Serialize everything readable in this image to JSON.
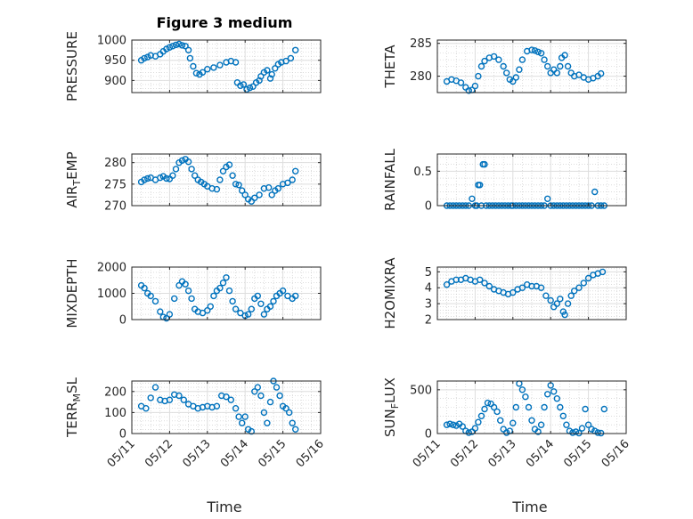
{
  "figure": {
    "title": "Figure 3 medium",
    "marker_color": "#0072BD"
  },
  "chart_data": [
    {
      "type": "scatter",
      "ylabel": "PRESSURE",
      "ylim": [
        870,
        1000
      ],
      "yticks": [
        900,
        950,
        1000
      ],
      "xlim": [
        "05/11",
        "05/16"
      ],
      "xticks": [
        "05/11",
        "05/12",
        "05/13",
        "05/14",
        "05/15",
        "05/16"
      ],
      "grid": true,
      "x": [
        "05/11 06:00",
        "05/11 08:00",
        "05/11 10:00",
        "05/11 12:00",
        "05/11 15:00",
        "05/11 18:00",
        "05/11 20:00",
        "05/11 22:00",
        "05/12 00:00",
        "05/12 02:00",
        "05/12 04:00",
        "05/12 06:00",
        "05/12 08:00",
        "05/12 10:00",
        "05/12 12:00",
        "05/12 13:00",
        "05/12 15:00",
        "05/12 17:00",
        "05/12 19:00",
        "05/12 21:00",
        "05/13 00:00",
        "05/13 04:00",
        "05/13 08:00",
        "05/13 12:00",
        "05/13 15:00",
        "05/13 18:00",
        "05/13 19:00",
        "05/13 21:00",
        "05/13 23:00",
        "05/14 01:00",
        "05/14 03:00",
        "05/14 05:00",
        "05/14 07:00",
        "05/14 09:00",
        "05/14 10:00",
        "05/14 12:00",
        "05/14 14:00",
        "05/14 16:00",
        "05/14 17:00",
        "05/14 19:00",
        "05/14 21:00",
        "05/14 23:00",
        "05/15 02:00",
        "05/15 05:00",
        "05/15 08:00"
      ],
      "y": [
        950,
        955,
        958,
        962,
        960,
        965,
        972,
        978,
        982,
        985,
        988,
        990,
        987,
        985,
        975,
        955,
        935,
        918,
        915,
        920,
        928,
        932,
        938,
        945,
        948,
        945,
        895,
        887,
        890,
        878,
        882,
        885,
        895,
        900,
        910,
        920,
        925,
        905,
        915,
        930,
        940,
        945,
        948,
        955,
        975
      ]
    },
    {
      "type": "scatter",
      "ylabel": "THETA",
      "ylim": [
        277.5,
        285.5
      ],
      "yticks": [
        280,
        285
      ],
      "xlim": [
        "05/11",
        "05/16"
      ],
      "xticks": [
        "05/11",
        "05/12",
        "05/13",
        "05/14",
        "05/15",
        "05/16"
      ],
      "grid": true,
      "x": [
        "05/11 06:00",
        "05/11 09:00",
        "05/11 12:00",
        "05/11 15:00",
        "05/11 18:00",
        "05/11 20:00",
        "05/11 22:00",
        "05/12 00:00",
        "05/12 02:00",
        "05/12 04:00",
        "05/12 06:00",
        "05/12 09:00",
        "05/12 12:00",
        "05/12 15:00",
        "05/12 18:00",
        "05/12 20:00",
        "05/12 22:00",
        "05/13 00:00",
        "05/13 02:00",
        "05/13 04:00",
        "05/13 06:00",
        "05/13 09:00",
        "05/13 12:00",
        "05/13 14:00",
        "05/13 16:00",
        "05/13 18:00",
        "05/13 20:00",
        "05/13 22:00",
        "05/14 00:00",
        "05/14 02:00",
        "05/14 04:00",
        "05/14 06:00",
        "05/14 07:00",
        "05/14 09:00",
        "05/14 11:00",
        "05/14 13:00",
        "05/14 15:00",
        "05/14 18:00",
        "05/14 21:00",
        "05/15 00:00",
        "05/15 03:00",
        "05/15 06:00",
        "05/15 08:00"
      ],
      "y": [
        279.2,
        279.5,
        279.3,
        279,
        278.3,
        277.8,
        277.9,
        278.5,
        280,
        281.5,
        282.3,
        282.8,
        283,
        282.5,
        281.5,
        280.5,
        279.5,
        279.2,
        279.8,
        281,
        282.5,
        283.8,
        284,
        283.9,
        283.7,
        283.5,
        282.5,
        281.5,
        280.5,
        281,
        280.5,
        281.5,
        282.8,
        283.2,
        281.5,
        280.5,
        280,
        280.2,
        279.8,
        279.5,
        279.7,
        280,
        280.4
      ]
    },
    {
      "type": "scatter",
      "ylabel": "AIR_TEMP",
      "ylim": [
        270,
        282
      ],
      "yticks": [
        270,
        275,
        280
      ],
      "xlim": [
        "05/11",
        "05/16"
      ],
      "xticks": [
        "05/11",
        "05/12",
        "05/13",
        "05/14",
        "05/15",
        "05/16"
      ],
      "grid": true,
      "x": [
        "05/11 06:00",
        "05/11 08:00",
        "05/11 10:00",
        "05/11 12:00",
        "05/11 15:00",
        "05/11 18:00",
        "05/11 20:00",
        "05/11 22:00",
        "05/12 00:00",
        "05/12 02:00",
        "05/12 04:00",
        "05/12 06:00",
        "05/12 08:00",
        "05/12 10:00",
        "05/12 12:00",
        "05/12 14:00",
        "05/12 16:00",
        "05/12 18:00",
        "05/12 20:00",
        "05/12 22:00",
        "05/13 00:00",
        "05/13 03:00",
        "05/13 06:00",
        "05/13 08:00",
        "05/13 10:00",
        "05/13 12:00",
        "05/13 14:00",
        "05/13 16:00",
        "05/13 18:00",
        "05/13 20:00",
        "05/13 22:00",
        "05/14 00:00",
        "05/14 02:00",
        "05/14 04:00",
        "05/14 06:00",
        "05/14 09:00",
        "05/14 12:00",
        "05/14 15:00",
        "05/14 17:00",
        "05/14 19:00",
        "05/14 21:00",
        "05/15 00:00",
        "05/15 03:00",
        "05/15 06:00",
        "05/15 08:00"
      ],
      "y": [
        275.5,
        276,
        276.3,
        276.5,
        276,
        276.5,
        276.8,
        276.3,
        276.2,
        277,
        278.5,
        280,
        280.5,
        280.8,
        280.2,
        278.5,
        277,
        276,
        275.5,
        275,
        274.5,
        274,
        273.8,
        276,
        278,
        279,
        279.5,
        277,
        275,
        274.8,
        273.5,
        272.5,
        271.5,
        271,
        271.8,
        272.5,
        274,
        274.2,
        272.5,
        273.5,
        274,
        275,
        275.3,
        276,
        278
      ]
    },
    {
      "type": "scatter",
      "ylabel": "RAINFALL",
      "ylim": [
        0,
        0.75
      ],
      "yticks": [
        0,
        0.5
      ],
      "xlim": [
        "05/11",
        "05/16"
      ],
      "xticks": [
        "05/11",
        "05/12",
        "05/13",
        "05/14",
        "05/15",
        "05/16"
      ],
      "grid": true,
      "x": [
        "05/11 06:00",
        "05/11 08:00",
        "05/11 10:00",
        "05/11 12:00",
        "05/11 14:00",
        "05/11 16:00",
        "05/11 18:00",
        "05/11 20:00",
        "05/11 22:00",
        "05/12 00:00",
        "05/12 01:00",
        "05/12 02:00",
        "05/12 03:00",
        "05/12 04:00",
        "05/12 05:00",
        "05/12 06:00",
        "05/12 07:00",
        "05/12 09:00",
        "05/12 11:00",
        "05/12 13:00",
        "05/12 15:00",
        "05/12 17:00",
        "05/12 19:00",
        "05/12 21:00",
        "05/12 23:00",
        "05/13 00:00",
        "05/13 02:00",
        "05/13 04:00",
        "05/13 06:00",
        "05/13 08:00",
        "05/13 10:00",
        "05/13 12:00",
        "05/13 14:00",
        "05/13 16:00",
        "05/13 18:00",
        "05/13 20:00",
        "05/13 22:00",
        "05/14 00:00",
        "05/14 02:00",
        "05/14 04:00",
        "05/14 06:00",
        "05/14 08:00",
        "05/14 10:00",
        "05/14 12:00",
        "05/14 14:00",
        "05/14 16:00",
        "05/14 18:00",
        "05/14 20:00",
        "05/14 22:00",
        "05/15 00:00",
        "05/15 02:00",
        "05/15 04:00",
        "05/15 06:00",
        "05/15 08:00",
        "05/15 10:00"
      ],
      "y": [
        0,
        0,
        0,
        0,
        0,
        0,
        0,
        0,
        0.1,
        0,
        0,
        0.3,
        0.3,
        0,
        0.6,
        0.6,
        0,
        0,
        0,
        0,
        0,
        0,
        0,
        0,
        0,
        0,
        0,
        0,
        0,
        0,
        0,
        0,
        0,
        0,
        0,
        0,
        0.1,
        0,
        0,
        0,
        0,
        0,
        0,
        0,
        0,
        0,
        0,
        0,
        0,
        0,
        0,
        0.2,
        0,
        0,
        0
      ]
    },
    {
      "type": "scatter",
      "ylabel": "MIXDEPTH",
      "ylim": [
        0,
        2000
      ],
      "yticks": [
        0,
        1000,
        2000
      ],
      "xlim": [
        "05/11",
        "05/16"
      ],
      "xticks": [
        "05/11",
        "05/12",
        "05/13",
        "05/14",
        "05/15",
        "05/16"
      ],
      "grid": true,
      "x": [
        "05/11 06:00",
        "05/11 08:00",
        "05/11 10:00",
        "05/11 12:00",
        "05/11 15:00",
        "05/11 18:00",
        "05/11 20:00",
        "05/11 22:00",
        "05/12 00:00",
        "05/12 03:00",
        "05/12 06:00",
        "05/12 08:00",
        "05/12 10:00",
        "05/12 12:00",
        "05/12 14:00",
        "05/12 16:00",
        "05/12 18:00",
        "05/12 21:00",
        "05/13 00:00",
        "05/13 02:00",
        "05/13 04:00",
        "05/13 06:00",
        "05/13 08:00",
        "05/13 10:00",
        "05/13 12:00",
        "05/13 14:00",
        "05/13 16:00",
        "05/13 18:00",
        "05/13 21:00",
        "05/14 00:00",
        "05/14 02:00",
        "05/14 04:00",
        "05/14 06:00",
        "05/14 08:00",
        "05/14 10:00",
        "05/14 12:00",
        "05/14 14:00",
        "05/14 16:00",
        "05/14 18:00",
        "05/14 20:00",
        "05/14 22:00",
        "05/15 00:00",
        "05/15 03:00",
        "05/15 06:00",
        "05/15 08:00"
      ],
      "y": [
        1300,
        1200,
        1000,
        900,
        700,
        300,
        100,
        50,
        200,
        800,
        1300,
        1450,
        1350,
        1100,
        800,
        400,
        300,
        250,
        350,
        500,
        900,
        1100,
        1200,
        1400,
        1600,
        1100,
        700,
        400,
        250,
        150,
        200,
        400,
        800,
        900,
        600,
        200,
        400,
        500,
        700,
        900,
        1000,
        1100,
        900,
        800,
        900
      ]
    },
    {
      "type": "scatter",
      "ylabel": "H2OMIXRA",
      "ylim": [
        2,
        5.3
      ],
      "yticks": [
        2,
        3,
        4,
        5
      ],
      "xlim": [
        "05/11",
        "05/16"
      ],
      "xticks": [
        "05/11",
        "05/12",
        "05/13",
        "05/14",
        "05/15",
        "05/16"
      ],
      "grid": true,
      "x": [
        "05/11 06:00",
        "05/11 09:00",
        "05/11 12:00",
        "05/11 15:00",
        "05/11 18:00",
        "05/11 21:00",
        "05/12 00:00",
        "05/12 03:00",
        "05/12 06:00",
        "05/12 09:00",
        "05/12 12:00",
        "05/12 15:00",
        "05/12 18:00",
        "05/12 21:00",
        "05/13 00:00",
        "05/13 03:00",
        "05/13 06:00",
        "05/13 09:00",
        "05/13 12:00",
        "05/13 15:00",
        "05/13 18:00",
        "05/13 21:00",
        "05/14 00:00",
        "05/14 02:00",
        "05/14 04:00",
        "05/14 06:00",
        "05/14 08:00",
        "05/14 09:00",
        "05/14 11:00",
        "05/14 13:00",
        "05/14 15:00",
        "05/14 18:00",
        "05/14 21:00",
        "05/15 00:00",
        "05/15 03:00",
        "05/15 06:00",
        "05/15 09:00"
      ],
      "y": [
        4.2,
        4.4,
        4.5,
        4.5,
        4.6,
        4.5,
        4.4,
        4.5,
        4.3,
        4.1,
        3.9,
        3.8,
        3.7,
        3.6,
        3.7,
        3.9,
        4,
        4.2,
        4.1,
        4.1,
        4,
        3.5,
        3.2,
        2.8,
        3,
        3.3,
        2.5,
        2.3,
        3,
        3.5,
        3.8,
        4,
        4.3,
        4.6,
        4.8,
        4.9,
        5
      ]
    },
    {
      "type": "scatter",
      "ylabel": "TERR_MSL",
      "ylim": [
        0,
        250
      ],
      "yticks": [
        0,
        100,
        200
      ],
      "xlim": [
        "05/11",
        "05/16"
      ],
      "xticks": [
        "05/11",
        "05/12",
        "05/13",
        "05/14",
        "05/15",
        "05/16"
      ],
      "grid": true,
      "x": [
        "05/11 06:00",
        "05/11 09:00",
        "05/11 12:00",
        "05/11 15:00",
        "05/11 18:00",
        "05/11 21:00",
        "05/12 00:00",
        "05/12 03:00",
        "05/12 06:00",
        "05/12 09:00",
        "05/12 12:00",
        "05/12 15:00",
        "05/12 18:00",
        "05/12 21:00",
        "05/13 00:00",
        "05/13 03:00",
        "05/13 06:00",
        "05/13 09:00",
        "05/13 12:00",
        "05/13 15:00",
        "05/13 18:00",
        "05/13 20:00",
        "05/13 22:00",
        "05/14 00:00",
        "05/14 02:00",
        "05/14 04:00",
        "05/14 06:00",
        "05/14 08:00",
        "05/14 10:00",
        "05/14 12:00",
        "05/14 14:00",
        "05/14 16:00",
        "05/14 18:00",
        "05/14 20:00",
        "05/14 22:00",
        "05/15 00:00",
        "05/15 02:00",
        "05/15 04:00",
        "05/15 06:00",
        "05/15 08:00"
      ],
      "y": [
        130,
        120,
        170,
        220,
        160,
        155,
        160,
        185,
        180,
        160,
        140,
        130,
        120,
        125,
        130,
        125,
        130,
        180,
        175,
        160,
        120,
        80,
        50,
        80,
        20,
        10,
        200,
        220,
        180,
        100,
        50,
        150,
        250,
        220,
        180,
        130,
        120,
        100,
        50,
        20
      ]
    },
    {
      "type": "scatter",
      "ylabel": "SUN_FLUX",
      "ylim": [
        0,
        600
      ],
      "yticks": [
        0,
        500
      ],
      "xlim": [
        "05/11",
        "05/16"
      ],
      "xticks": [
        "05/11",
        "05/12",
        "05/13",
        "05/14",
        "05/15",
        "05/16"
      ],
      "grid": true,
      "x": [
        "05/11 06:00",
        "05/11 08:00",
        "05/11 10:00",
        "05/11 12:00",
        "05/11 14:00",
        "05/11 16:00",
        "05/11 18:00",
        "05/11 20:00",
        "05/11 22:00",
        "05/12 00:00",
        "05/12 02:00",
        "05/12 04:00",
        "05/12 06:00",
        "05/12 08:00",
        "05/12 10:00",
        "05/12 12:00",
        "05/12 14:00",
        "05/12 16:00",
        "05/12 18:00",
        "05/12 20:00",
        "05/12 22:00",
        "05/13 00:00",
        "05/13 02:00",
        "05/13 04:00",
        "05/13 06:00",
        "05/13 08:00",
        "05/13 10:00",
        "05/13 12:00",
        "05/13 14:00",
        "05/13 16:00",
        "05/13 18:00",
        "05/13 20:00",
        "05/13 22:00",
        "05/14 00:00",
        "05/14 02:00",
        "05/14 04:00",
        "05/14 06:00",
        "05/14 08:00",
        "05/14 10:00",
        "05/14 12:00",
        "05/14 14:00",
        "05/14 16:00",
        "05/14 18:00",
        "05/14 20:00",
        "05/14 22:00",
        "05/15 00:00",
        "05/15 02:00",
        "05/15 04:00",
        "05/15 06:00",
        "05/15 08:00",
        "05/15 10:00"
      ],
      "y": [
        100,
        110,
        100,
        90,
        110,
        80,
        30,
        10,
        20,
        60,
        130,
        200,
        280,
        350,
        340,
        300,
        250,
        150,
        50,
        10,
        30,
        120,
        300,
        570,
        500,
        420,
        300,
        150,
        50,
        20,
        100,
        300,
        450,
        550,
        480,
        400,
        300,
        200,
        100,
        30,
        10,
        20,
        5,
        60,
        280,
        100,
        50,
        30,
        10,
        5,
        280
      ]
    }
  ],
  "x_axis_label": "Time"
}
